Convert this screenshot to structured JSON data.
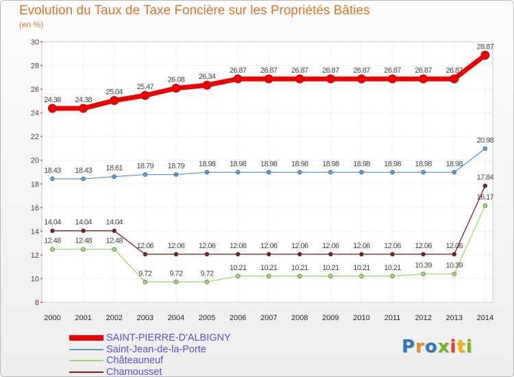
{
  "chart_data": {
    "type": "line",
    "title": "Evolution du Taux de Taxe Foncière sur les Propriétés Bâties",
    "subtitle": "(en %)",
    "xlabel": "",
    "ylabel": "",
    "categories": [
      "2000",
      "2001",
      "2002",
      "2003",
      "2004",
      "2005",
      "2006",
      "2007",
      "2008",
      "2009",
      "2010",
      "2011",
      "2012",
      "2013",
      "2014"
    ],
    "ylim": [
      8,
      30
    ],
    "yticks": [
      8,
      10,
      12,
      14,
      16,
      18,
      20,
      22,
      24,
      26,
      28,
      30
    ],
    "grid": true,
    "legend_position": "bottom-left",
    "series": [
      {
        "name": "SAINT-PIERRE-D'ALBIGNY",
        "color": "#ee0000",
        "values": [
          24.38,
          24.38,
          25.04,
          25.47,
          26.08,
          26.34,
          26.87,
          26.87,
          26.87,
          26.87,
          26.87,
          26.87,
          26.87,
          26.87,
          28.87
        ],
        "labels": [
          "24.38",
          "24.38",
          "25.04",
          "25.47",
          "26.08",
          "26.34",
          "26.87",
          "26.87",
          "26.87",
          "26.87",
          "26.87",
          "26.87",
          "26.87",
          "26.87",
          "28.87"
        ]
      },
      {
        "name": "Saint-Jean-de-la-Porte",
        "color": "#5b9bd0",
        "values": [
          18.43,
          18.43,
          18.61,
          18.79,
          18.79,
          18.98,
          18.98,
          18.98,
          18.98,
          18.98,
          18.98,
          18.98,
          18.98,
          18.98,
          20.98
        ],
        "labels": [
          "18.43",
          "18.43",
          "18.61",
          "18.79",
          "18.79",
          "18.98",
          "18.98",
          "18.98",
          "18.98",
          "18.98",
          "18.98",
          "18.98",
          "18.98",
          "18.98",
          "20.98"
        ]
      },
      {
        "name": "Châteauneuf",
        "color": "#9ed868",
        "values": [
          12.48,
          12.48,
          12.48,
          9.72,
          9.72,
          9.72,
          10.21,
          10.21,
          10.21,
          10.21,
          10.21,
          10.21,
          10.39,
          10.39,
          16.17
        ],
        "labels": [
          "12.48",
          "12.48",
          "12.48",
          "9.72",
          "9.72",
          "9.72",
          "10.21",
          "10.21",
          "10.21",
          "10.21",
          "10.21",
          "10.21",
          "10.39",
          "10.39",
          "16.17"
        ]
      },
      {
        "name": "Chamousset",
        "color": "#7a1c22",
        "values": [
          14.04,
          14.04,
          14.04,
          12.06,
          12.06,
          12.06,
          12.06,
          12.06,
          12.06,
          12.06,
          12.06,
          12.06,
          12.06,
          12.06,
          17.84
        ],
        "labels": [
          "14.04",
          "14.04",
          "14.04",
          "12.06",
          "12.06",
          "12.06",
          "12.06",
          "12.06",
          "12.06",
          "12.06",
          "12.06",
          "12.06",
          "12.06",
          "12.06",
          "17.84"
        ]
      }
    ]
  },
  "brand": {
    "letters": [
      "P",
      "r",
      "o",
      "x",
      "i",
      "t",
      "i"
    ],
    "colors": [
      "#2a7bc4",
      "#f08a24",
      "#2a7bc4",
      "#7ab51d",
      "#e63c2b",
      "#f0b400",
      "#7ab51d"
    ]
  }
}
